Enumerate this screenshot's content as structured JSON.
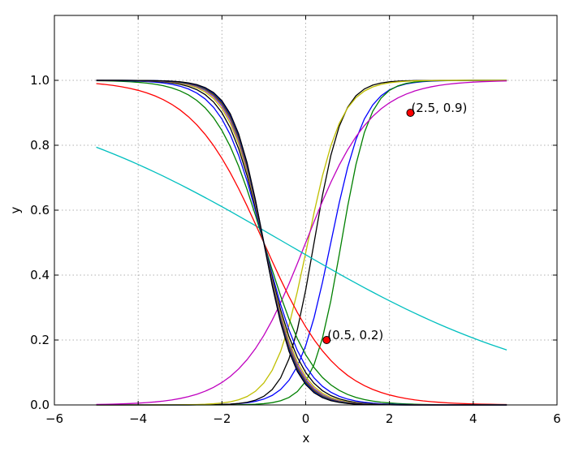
{
  "chart_data": {
    "type": "line",
    "title": "",
    "xlabel": "x",
    "ylabel": "y",
    "xlim": [
      -6,
      6
    ],
    "ylim": [
      0,
      1.2
    ],
    "xticks": [
      "−6",
      "−4",
      "−2",
      "0",
      "2",
      "4",
      "6"
    ],
    "xtick_values": [
      -6,
      -4,
      -2,
      0,
      2,
      4,
      6
    ],
    "yticks": [
      "0.0",
      "0.2",
      "0.4",
      "0.6",
      "0.8",
      "1.0"
    ],
    "ytick_values": [
      0.0,
      0.2,
      0.4,
      0.6,
      0.8,
      1.0
    ],
    "grid": true,
    "legend": "none",
    "x_range": [
      -5,
      4.8
    ],
    "x_step": 0.2,
    "curve_formula": "1 / (1 + exp(-k * (x - x0)))",
    "series": [
      {
        "color": "#0000ff",
        "k": 2.5,
        "x0": 0.6
      },
      {
        "color": "#008000",
        "k": 3.0,
        "x0": 0.85
      },
      {
        "color": "#000000",
        "k": 3.0,
        "x0": 0.2
      },
      {
        "color": "#c0bf00",
        "k": 2.5,
        "x0": 0.05
      },
      {
        "color": "#bf00bf",
        "k": 1.3,
        "x0": 0.0
      },
      {
        "color": "#00bfbf",
        "k": -0.3,
        "x0": -0.5
      },
      {
        "color": "#ff0000",
        "k": -1.15,
        "x0": -1.0
      },
      {
        "color": "#008000",
        "k": -1.7,
        "x0": -1.0
      },
      {
        "color": "#0000ff",
        "k": -2.0,
        "x0": -1.0
      },
      {
        "color": "#000000",
        "k": -2.2,
        "x0": -1.0
      },
      {
        "color": "#c0bf00",
        "k": -2.35,
        "x0": -1.0
      },
      {
        "color": "#bf00bf",
        "k": -2.45,
        "x0": -1.0
      },
      {
        "color": "#00bfbf",
        "k": -2.5,
        "x0": -1.0
      },
      {
        "color": "#ff0000",
        "k": -2.55,
        "x0": -1.0
      },
      {
        "color": "#008000",
        "k": -2.6,
        "x0": -1.0
      },
      {
        "color": "#0000ff",
        "k": -2.65,
        "x0": -1.0
      },
      {
        "color": "#000000",
        "k": -2.7,
        "x0": -1.0
      }
    ],
    "points": [
      {
        "x": 0.5,
        "y": 0.2,
        "label": "(0.5, 0.2)",
        "color": "#ff0000"
      },
      {
        "x": 2.5,
        "y": 0.9,
        "label": "(2.5, 0.9)",
        "color": "#ff0000"
      }
    ]
  }
}
